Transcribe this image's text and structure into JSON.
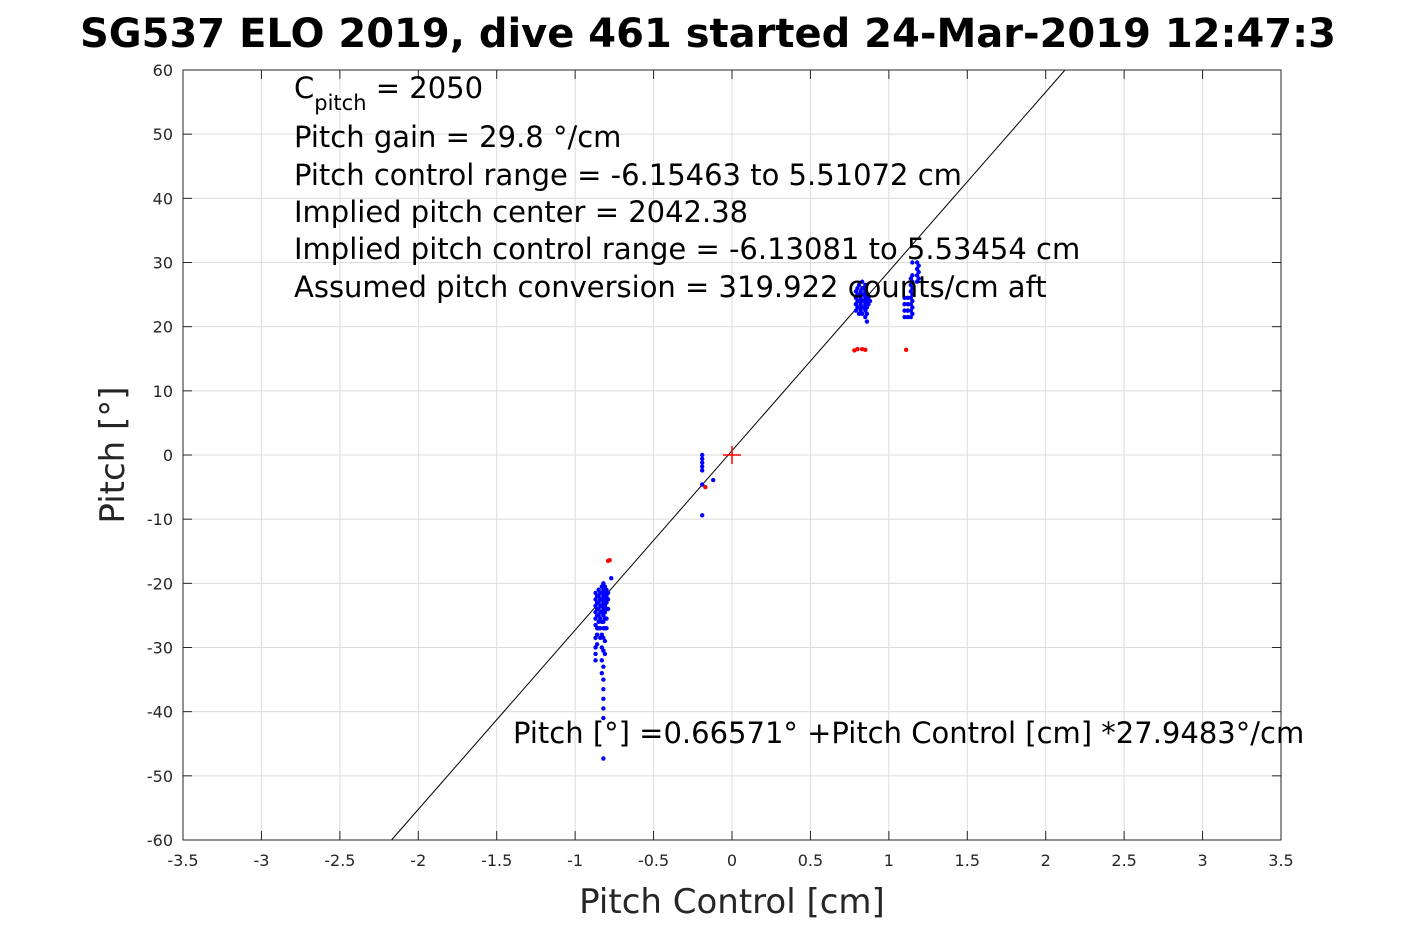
{
  "chart_data": {
    "type": "scatter",
    "title": "SG537 ELO 2019, dive 461 started 24-Mar-2019 12:47:3",
    "xlabel": "Pitch Control [cm]",
    "ylabel": "Pitch [°]",
    "xlim": [
      -3.5,
      3.5
    ],
    "ylim": [
      -60,
      60
    ],
    "xticks": [
      "-3.5",
      "-3",
      "-2.5",
      "-2",
      "-1.5",
      "-1",
      "-0.5",
      "0",
      "0.5",
      "1",
      "1.5",
      "2",
      "2.5",
      "3",
      "3.5"
    ],
    "yticks": [
      "60",
      "50",
      "40",
      "30",
      "20",
      "10",
      "0",
      "-10",
      "-20",
      "-30",
      "-40",
      "-50",
      "-60"
    ],
    "grid": true,
    "colors": {
      "blue": "#0000ff",
      "red": "#ff0000",
      "line": "#000000",
      "grid": "#dcdcdc"
    },
    "annotations": {
      "c_pitch_main": "C",
      "c_pitch_sub": "pitch",
      "c_pitch_value": " = 2050",
      "pitch_gain": "Pitch gain = 29.8 °/cm",
      "control_range": "Pitch control range = -6.15463 to 5.51072 cm",
      "implied_center": "Implied pitch center = 2042.38",
      "implied_range": "Implied pitch control range = -6.13081 to 5.53454 cm",
      "conversion": "Assumed pitch conversion = 319.922 counts/cm aft",
      "fit_equation": "Pitch [°] =0.66571° +Pitch Control [cm] *27.9483°/cm"
    },
    "fit_line": {
      "intercept": 0.66571,
      "slope": 27.9483
    },
    "center_marker": {
      "x": 0,
      "y": 0
    },
    "series": [
      {
        "color": "blue",
        "points": [
          [
            -0.87,
            -21.5
          ],
          [
            -0.87,
            -22.5
          ],
          [
            -0.87,
            -23.5
          ],
          [
            -0.87,
            -24.5
          ],
          [
            -0.87,
            -25.5
          ],
          [
            -0.87,
            -26.5
          ],
          [
            -0.87,
            -28.5
          ],
          [
            -0.87,
            -30
          ],
          [
            -0.87,
            -31
          ],
          [
            -0.87,
            -32
          ],
          [
            -0.86,
            -22
          ],
          [
            -0.86,
            -23
          ],
          [
            -0.86,
            -24
          ],
          [
            -0.86,
            -25
          ],
          [
            -0.86,
            -27
          ],
          [
            -0.86,
            -28
          ],
          [
            -0.86,
            -29.5
          ],
          [
            -0.85,
            -21
          ],
          [
            -0.85,
            -22
          ],
          [
            -0.85,
            -23
          ],
          [
            -0.85,
            -24
          ],
          [
            -0.85,
            -25
          ],
          [
            -0.85,
            -26
          ],
          [
            -0.85,
            -27
          ],
          [
            -0.84,
            -21.5
          ],
          [
            -0.84,
            -22.5
          ],
          [
            -0.84,
            -23.5
          ],
          [
            -0.84,
            -24.5
          ],
          [
            -0.84,
            -25.5
          ],
          [
            -0.84,
            -27
          ],
          [
            -0.84,
            -28.5
          ],
          [
            -0.83,
            -20.5
          ],
          [
            -0.83,
            -21.5
          ],
          [
            -0.83,
            -22.5
          ],
          [
            -0.83,
            -23.5
          ],
          [
            -0.83,
            -24.5
          ],
          [
            -0.83,
            -26
          ],
          [
            -0.83,
            -28
          ],
          [
            -0.83,
            -30
          ],
          [
            -0.83,
            -32
          ],
          [
            -0.83,
            -34
          ],
          [
            -0.82,
            -20
          ],
          [
            -0.82,
            -21
          ],
          [
            -0.82,
            -22
          ],
          [
            -0.82,
            -23
          ],
          [
            -0.82,
            -24
          ],
          [
            -0.82,
            -25
          ],
          [
            -0.82,
            -26
          ],
          [
            -0.82,
            -27
          ],
          [
            -0.82,
            -28.5
          ],
          [
            -0.82,
            -30.5
          ],
          [
            -0.82,
            -33
          ],
          [
            -0.82,
            -35
          ],
          [
            -0.82,
            -36.5
          ],
          [
            -0.82,
            -38
          ],
          [
            -0.82,
            -39.5
          ],
          [
            -0.82,
            -41
          ],
          [
            -0.82,
            -47.3
          ],
          [
            -0.81,
            -20.5
          ],
          [
            -0.81,
            -21.5
          ],
          [
            -0.81,
            -22.5
          ],
          [
            -0.81,
            -23.5
          ],
          [
            -0.81,
            -24.5
          ],
          [
            -0.81,
            -25.5
          ],
          [
            -0.81,
            -27
          ],
          [
            -0.81,
            -29
          ],
          [
            -0.81,
            -31
          ],
          [
            -0.8,
            -21
          ],
          [
            -0.8,
            -22
          ],
          [
            -0.8,
            -23
          ],
          [
            -0.8,
            -24
          ],
          [
            -0.8,
            -25.5
          ],
          [
            -0.8,
            -27
          ],
          [
            -0.79,
            -21.5
          ],
          [
            -0.79,
            -22.5
          ],
          [
            -0.79,
            -24
          ],
          [
            -0.77,
            -19.2
          ],
          [
            -0.19,
            0.0
          ],
          [
            -0.19,
            -0.6
          ],
          [
            -0.19,
            -1.2
          ],
          [
            -0.19,
            -1.8
          ],
          [
            -0.19,
            -2.4
          ],
          [
            -0.19,
            -4.6
          ],
          [
            -0.19,
            -9.4
          ],
          [
            -0.12,
            -3.9
          ],
          [
            0.79,
            22.5
          ],
          [
            0.79,
            23.5
          ],
          [
            0.79,
            24.5
          ],
          [
            0.79,
            25.5
          ],
          [
            0.8,
            23
          ],
          [
            0.8,
            24
          ],
          [
            0.8,
            25
          ],
          [
            0.8,
            26
          ],
          [
            0.81,
            22
          ],
          [
            0.81,
            23
          ],
          [
            0.81,
            24
          ],
          [
            0.81,
            25
          ],
          [
            0.81,
            26.5
          ],
          [
            0.82,
            22.5
          ],
          [
            0.82,
            23.5
          ],
          [
            0.82,
            24.5
          ],
          [
            0.82,
            25.5
          ],
          [
            0.83,
            22
          ],
          [
            0.83,
            23
          ],
          [
            0.83,
            24
          ],
          [
            0.83,
            25
          ],
          [
            0.83,
            26
          ],
          [
            0.83,
            27
          ],
          [
            0.84,
            23
          ],
          [
            0.84,
            24
          ],
          [
            0.84,
            25
          ],
          [
            0.84,
            26
          ],
          [
            0.85,
            21.5
          ],
          [
            0.85,
            22.5
          ],
          [
            0.85,
            23.5
          ],
          [
            0.85,
            24.5
          ],
          [
            0.85,
            25.5
          ],
          [
            0.85,
            26.5
          ],
          [
            0.86,
            20.8
          ],
          [
            0.86,
            22
          ],
          [
            0.86,
            23
          ],
          [
            0.86,
            24
          ],
          [
            0.86,
            25
          ],
          [
            0.87,
            23.5
          ],
          [
            0.87,
            24.5
          ],
          [
            0.88,
            24
          ],
          [
            1.1,
            21.5
          ],
          [
            1.1,
            22.5
          ],
          [
            1.1,
            23.5
          ],
          [
            1.1,
            24.5
          ],
          [
            1.12,
            21.5
          ],
          [
            1.12,
            22.5
          ],
          [
            1.12,
            23.5
          ],
          [
            1.12,
            24.5
          ],
          [
            1.14,
            21.5
          ],
          [
            1.14,
            22.5
          ],
          [
            1.14,
            23.5
          ],
          [
            1.14,
            24.5
          ],
          [
            1.14,
            25.5
          ],
          [
            1.14,
            26.5
          ],
          [
            1.14,
            27.5
          ],
          [
            1.15,
            22
          ],
          [
            1.15,
            23
          ],
          [
            1.15,
            24
          ],
          [
            1.15,
            25
          ],
          [
            1.15,
            26
          ],
          [
            1.15,
            27
          ],
          [
            1.15,
            28
          ],
          [
            1.15,
            30
          ],
          [
            1.18,
            27
          ],
          [
            1.18,
            28
          ],
          [
            1.18,
            29
          ],
          [
            1.18,
            30
          ],
          [
            1.19,
            27.5
          ],
          [
            1.19,
            28.5
          ],
          [
            1.19,
            29.5
          ]
        ]
      },
      {
        "color": "red",
        "points": [
          [
            -0.79,
            -16.5
          ],
          [
            -0.78,
            -16.4
          ],
          [
            -0.17,
            -5.0
          ],
          [
            0.78,
            16.3
          ],
          [
            0.8,
            16.5
          ],
          [
            0.83,
            16.5
          ],
          [
            0.85,
            16.4
          ],
          [
            1.11,
            16.4
          ]
        ]
      }
    ]
  }
}
